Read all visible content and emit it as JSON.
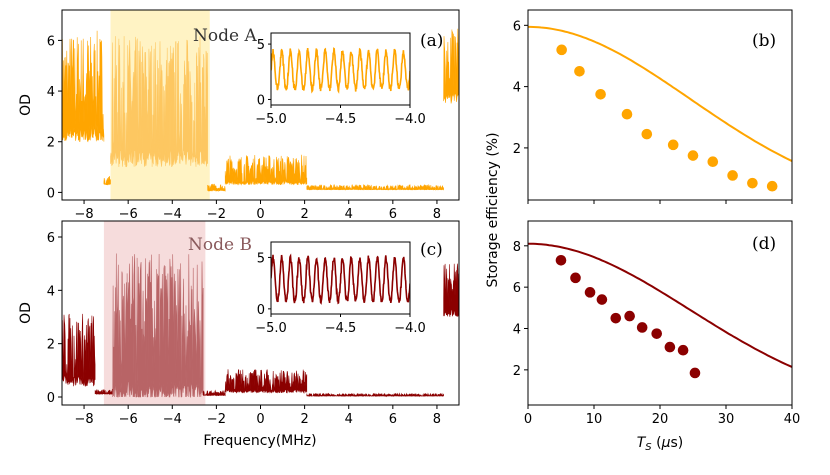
{
  "colors": {
    "nodeA": "#FFA500",
    "nodeA_light": "#FDC761",
    "nodeA_band": "#FFF3C4",
    "nodeB": "#8B0000",
    "nodeB_light": "#B86466",
    "nodeB_band": "#F6DCDC"
  },
  "chart_data": [
    {
      "id": "a",
      "type": "line",
      "panel_label": "(a)",
      "band_label": "Node A",
      "xlabel": "",
      "ylabel": "OD",
      "xlim": [
        -9,
        9
      ],
      "ylim": [
        -0.3,
        7.2
      ],
      "xticks": [
        -8,
        -6,
        -4,
        -2,
        0,
        2,
        4,
        6,
        8
      ],
      "xtick_labels": [
        "−8",
        "−6",
        "−4",
        "−2",
        "0",
        "2",
        "4",
        "6",
        "8"
      ],
      "yticks": [
        0,
        2,
        4,
        6
      ],
      "ytick_labels": [
        "0",
        "2",
        "4",
        "6"
      ],
      "highlight_band": [
        -6.8,
        -2.3
      ],
      "segments": [
        {
          "name": "left edge",
          "x": [
            -9,
            -7.1
          ],
          "base": 4.2,
          "noise": 2.2
        },
        {
          "name": "Node A band",
          "x": [
            -6.8,
            -2.4
          ],
          "base": 3.6,
          "noise": 2.6
        },
        {
          "name": "low level",
          "x": [
            -7.1,
            -6.8
          ],
          "base": 0.5,
          "noise": 0.2
        },
        {
          "name": "dip",
          "x": [
            -2.4,
            -1.6
          ],
          "base": 0.2,
          "noise": 0.15
        },
        {
          "name": "plateau",
          "x": [
            -1.6,
            2.1
          ],
          "base": 0.9,
          "noise": 0.6
        },
        {
          "name": "floor",
          "x": [
            2.1,
            8.3
          ],
          "base": 0.2,
          "noise": 0.1
        },
        {
          "name": "right edge",
          "x": [
            8.3,
            9
          ],
          "base": 5.0,
          "noise": 1.5
        }
      ],
      "inset": {
        "xlim": [
          -5.0,
          -4.0
        ],
        "ylim": [
          -0.5,
          6.0
        ],
        "xticks": [
          -5.0,
          -4.5,
          -4.0
        ],
        "xtick_labels": [
          "−5.0",
          "−4.5",
          "−4.0"
        ],
        "yticks": [
          0,
          5
        ],
        "ytick_labels": [
          "0",
          "5"
        ],
        "period": 0.0625,
        "base": 1.0,
        "amplitude": 3.4
      }
    },
    {
      "id": "c",
      "type": "line",
      "panel_label": "(c)",
      "band_label": "Node B",
      "xlabel": "Frequency(MHz)",
      "ylabel": "OD",
      "xlim": [
        -9,
        9
      ],
      "ylim": [
        -0.3,
        6.6
      ],
      "xticks": [
        -8,
        -6,
        -4,
        -2,
        0,
        2,
        4,
        6,
        8
      ],
      "xtick_labels": [
        "−8",
        "−6",
        "−4",
        "−2",
        "0",
        "2",
        "4",
        "6",
        "8"
      ],
      "yticks": [
        0,
        2,
        4,
        6
      ],
      "ytick_labels": [
        "0",
        "2",
        "4",
        "6"
      ],
      "highlight_band": [
        -7.1,
        -2.5
      ],
      "segments": [
        {
          "name": "left edge",
          "x": [
            -9,
            -7.5
          ],
          "base": 1.8,
          "noise": 1.4
        },
        {
          "name": "dip",
          "x": [
            -7.5,
            -6.7
          ],
          "base": 0.2,
          "noise": 0.1
        },
        {
          "name": "Node B band",
          "x": [
            -6.7,
            -2.6
          ],
          "base": 2.6,
          "noise": 2.8
        },
        {
          "name": "dip2",
          "x": [
            -2.6,
            -1.6
          ],
          "base": 0.15,
          "noise": 0.1
        },
        {
          "name": "plateau",
          "x": [
            -1.6,
            2.1
          ],
          "base": 0.6,
          "noise": 0.45
        },
        {
          "name": "floor",
          "x": [
            2.1,
            8.3
          ],
          "base": 0.08,
          "noise": 0.05
        },
        {
          "name": "right edge",
          "x": [
            8.3,
            9
          ],
          "base": 4.0,
          "noise": 1.0
        }
      ],
      "inset": {
        "xlim": [
          -5.0,
          -4.0
        ],
        "ylim": [
          -0.5,
          6.5
        ],
        "xticks": [
          -5.0,
          -4.5,
          -4.0
        ],
        "xtick_labels": [
          "−5.0",
          "−4.5",
          "−4.0"
        ],
        "yticks": [
          0,
          5
        ],
        "ytick_labels": [
          "0",
          "5"
        ],
        "period": 0.0625,
        "base": 0.8,
        "amplitude": 4.2
      }
    },
    {
      "id": "b",
      "type": "scatter",
      "panel_label": "(b)",
      "xlabel": "",
      "ylabel": "",
      "xlim": [
        0,
        40
      ],
      "ylim": [
        0.3,
        6.5
      ],
      "xticks": [
        0,
        10,
        20,
        30,
        40
      ],
      "xtick_labels": [
        "",
        "",
        "",
        "",
        ""
      ],
      "yticks": [
        2,
        4,
        6
      ],
      "ytick_labels": [
        "2",
        "4",
        "6"
      ],
      "points_x": [
        5.1,
        7.8,
        11.0,
        15.0,
        18.0,
        22.0,
        25.0,
        28.0,
        31.0,
        34.0,
        37.0
      ],
      "points_y": [
        5.2,
        4.5,
        3.75,
        3.1,
        2.45,
        2.1,
        1.75,
        1.55,
        1.1,
        0.85,
        0.75
      ],
      "fit": {
        "A": 5.95,
        "sigma": 24.5,
        "x": [
          0,
          40
        ]
      }
    },
    {
      "id": "d",
      "type": "scatter",
      "panel_label": "(d)",
      "xlabel": "T_S (μs)",
      "ylabel": "",
      "xlim": [
        0,
        40
      ],
      "ylim": [
        0.3,
        9.2
      ],
      "xticks": [
        0,
        10,
        20,
        30,
        40
      ],
      "xtick_labels": [
        "0",
        "10",
        "20",
        "30",
        "40"
      ],
      "yticks": [
        2,
        4,
        6,
        8
      ],
      "ytick_labels": [
        "2",
        "4",
        "6",
        "8"
      ],
      "points_x": [
        5.0,
        7.2,
        9.4,
        11.2,
        13.3,
        15.4,
        17.3,
        19.5,
        21.5,
        23.5,
        25.3
      ],
      "points_y": [
        7.3,
        6.45,
        5.75,
        5.4,
        4.5,
        4.6,
        4.05,
        3.75,
        3.1,
        2.95,
        1.85
      ],
      "fit": {
        "A": 8.1,
        "sigma": 24.5,
        "x": [
          0,
          40
        ]
      }
    }
  ],
  "shared_ylabel_right": "Storage efficiency (%)"
}
